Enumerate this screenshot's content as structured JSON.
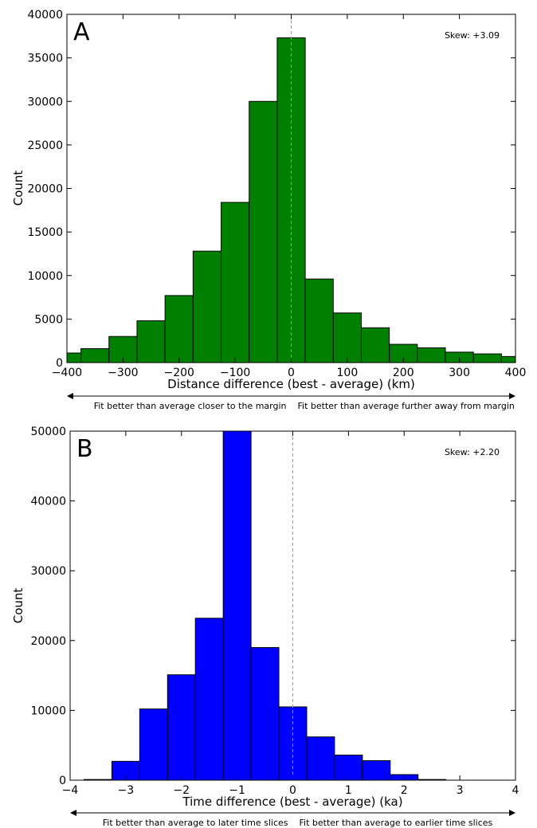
{
  "chart_data": [
    {
      "type": "bar",
      "panel_label": "A",
      "annotation": "Skew: +3.09",
      "xlabel": "Distance difference (best - average) (km)",
      "ylabel": "Count",
      "xlim": [
        -400,
        400
      ],
      "ylim": [
        0,
        40000
      ],
      "xticks": [
        "−400",
        "−300",
        "−200",
        "−100",
        "0",
        "100",
        "200",
        "300",
        "400"
      ],
      "yticks": [
        "0",
        "5000",
        "10000",
        "15000",
        "20000",
        "25000",
        "30000",
        "35000",
        "40000"
      ],
      "color": "#008000",
      "bin_edges": [
        -400,
        -375,
        -325,
        -275,
        -225,
        -175,
        -125,
        -75,
        -25,
        25,
        75,
        125,
        175,
        225,
        275,
        325,
        375,
        400
      ],
      "values": [
        1100,
        1600,
        3000,
        4800,
        7700,
        12800,
        18400,
        30000,
        37300,
        9600,
        5700,
        4000,
        2100,
        1700,
        1200,
        1000,
        700
      ],
      "reference_line_x": 0,
      "arrow_left_text": "Fit better than average closer to the margin",
      "arrow_right_text": "Fit better than average further away from margin"
    },
    {
      "type": "bar",
      "panel_label": "B",
      "annotation": "Skew: +2.20",
      "xlabel": "Time difference (best - average) (ka)",
      "ylabel": "Count",
      "xlim": [
        -4,
        4
      ],
      "ylim": [
        0,
        50000
      ],
      "xticks": [
        "−4",
        "−3",
        "−2",
        "−1",
        "0",
        "1",
        "2",
        "3",
        "4"
      ],
      "yticks": [
        "0",
        "10000",
        "20000",
        "30000",
        "40000",
        "50000"
      ],
      "color": "#0000ff",
      "bin_edges": [
        -4,
        -3.75,
        -3.25,
        -2.75,
        -2.25,
        -1.75,
        -1.25,
        -0.75,
        -0.25,
        0.25,
        0.75,
        1.25,
        1.75,
        2.25,
        2.75,
        3.25,
        3.75,
        4
      ],
      "values": [
        0,
        100,
        2700,
        10200,
        15100,
        23200,
        50000,
        19000,
        10500,
        6200,
        3600,
        2800,
        800,
        100,
        0,
        0,
        0
      ],
      "reference_line_x": 0,
      "arrow_left_text": "Fit better than average to later time slices",
      "arrow_right_text": "Fit better than average to earlier time slices"
    }
  ]
}
